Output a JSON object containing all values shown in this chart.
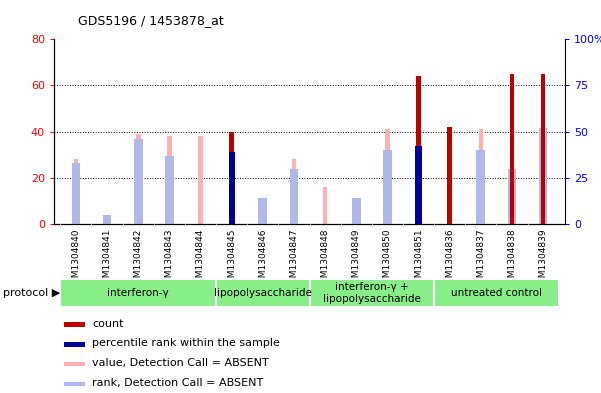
{
  "title": "GDS5196 / 1453878_at",
  "samples": [
    "GSM1304840",
    "GSM1304841",
    "GSM1304842",
    "GSM1304843",
    "GSM1304844",
    "GSM1304845",
    "GSM1304846",
    "GSM1304847",
    "GSM1304848",
    "GSM1304849",
    "GSM1304850",
    "GSM1304851",
    "GSM1304836",
    "GSM1304837",
    "GSM1304838",
    "GSM1304839"
  ],
  "value_absent": [
    28,
    1,
    39,
    38,
    38,
    null,
    5,
    28,
    16,
    5,
    41,
    null,
    null,
    41,
    null,
    null
  ],
  "rank_absent_vals": [
    33,
    5,
    46,
    37,
    null,
    null,
    14,
    30,
    null,
    14,
    40,
    null,
    null,
    40,
    30,
    52
  ],
  "count": [
    null,
    null,
    null,
    null,
    null,
    40,
    null,
    null,
    null,
    null,
    null,
    64,
    42,
    null,
    65,
    65
  ],
  "percentile_rank": [
    null,
    null,
    null,
    null,
    null,
    39,
    null,
    null,
    null,
    null,
    null,
    42,
    null,
    null,
    null,
    null
  ],
  "left_ylim": [
    0,
    80
  ],
  "left_yticks": [
    0,
    20,
    40,
    60,
    80
  ],
  "right_yticks": [
    0,
    25,
    50,
    75,
    100
  ],
  "right_yticklabels": [
    "0",
    "25",
    "50",
    "75",
    "100%"
  ],
  "protocols": [
    {
      "label": "interferon-γ",
      "start": 0,
      "end": 5
    },
    {
      "label": "lipopolysaccharide",
      "start": 5,
      "end": 8
    },
    {
      "label": "interferon-γ +\nlipopolysaccharide",
      "start": 8,
      "end": 12
    },
    {
      "label": "untreated control",
      "start": 12,
      "end": 16
    }
  ],
  "color_value_absent": "#ffb0b0",
  "color_rank_absent": "#b0b8e8",
  "color_count": "#bb0000",
  "color_percentile": "#000099",
  "bar_width": 0.15,
  "rank_sq_size": 0.28,
  "background_color": "#ffffff",
  "plot_bg": "#ffffff",
  "xlabel_bg": "#cccccc",
  "proto_color": "#88ee88",
  "legend_items": [
    {
      "label": "count",
      "color": "#bb0000"
    },
    {
      "label": "percentile rank within the sample",
      "color": "#000099"
    },
    {
      "label": "value, Detection Call = ABSENT",
      "color": "#ffb0b0"
    },
    {
      "label": "rank, Detection Call = ABSENT",
      "color": "#b0b8e8"
    }
  ]
}
